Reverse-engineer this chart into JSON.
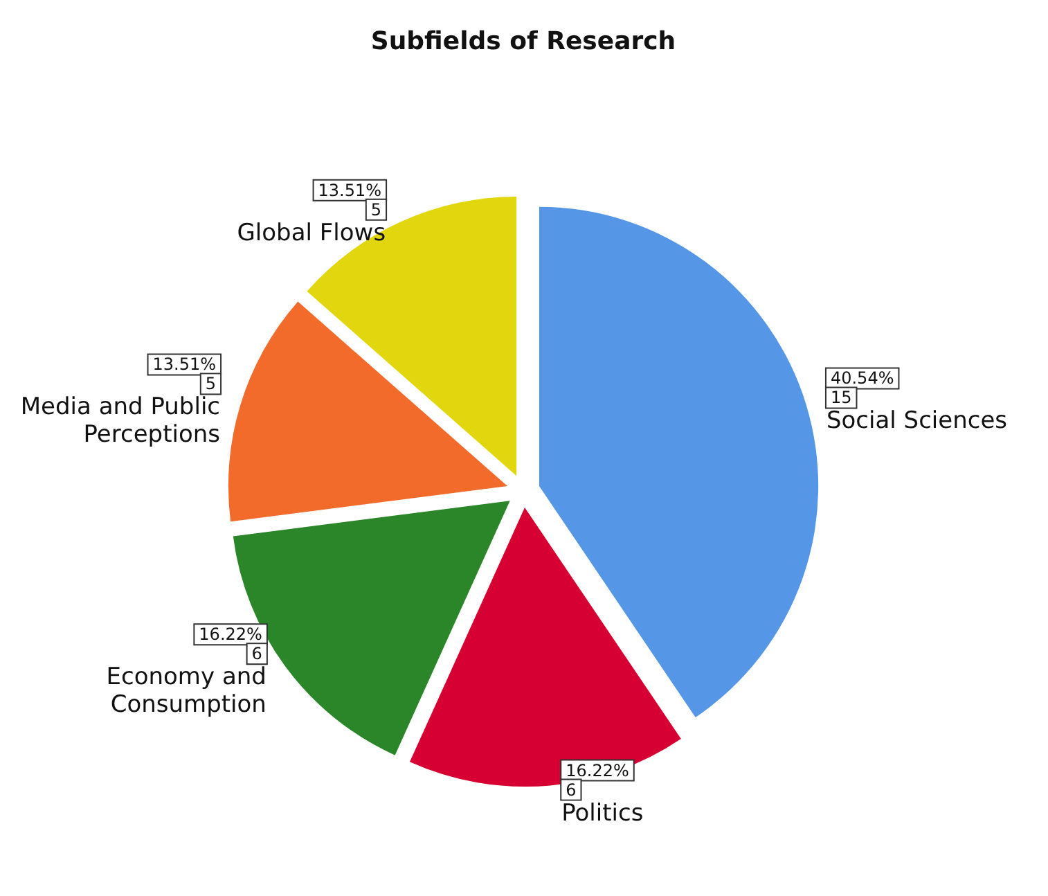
{
  "chart_data": {
    "type": "pie",
    "title": "Subfields of Research",
    "categories": [
      "Social Sciences",
      "Politics",
      "Economy and Consumption",
      "Media and Public Perceptions",
      "Global Flows"
    ],
    "values": [
      15,
      6,
      6,
      5,
      5
    ],
    "colors": [
      "#5597e6",
      "#d60032",
      "#2a8628",
      "#f26b2a",
      "#e2d70f"
    ],
    "value_labels": [
      "40.54%\n15",
      "16.22%\n6",
      "16.22%\n6",
      "13.51%\n5",
      "13.51%\n5"
    ],
    "legend": false
  }
}
